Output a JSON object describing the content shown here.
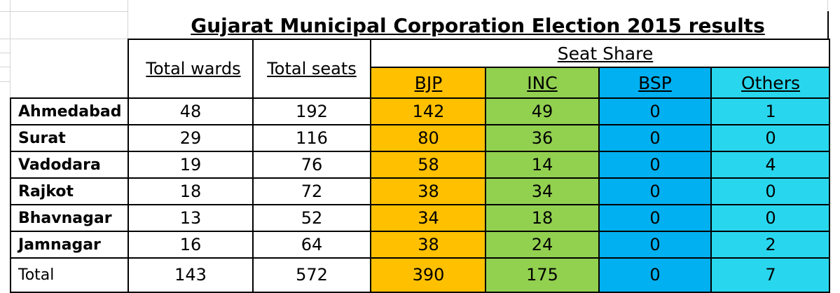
{
  "title": "Gujarat Municipal Corporation Election 2015 results",
  "headers": {
    "total_wards": "Total wards",
    "total_seats": "Total seats",
    "seat_share": "Seat Share"
  },
  "parties": [
    {
      "name": "BJP",
      "color": "#ffc000"
    },
    {
      "name": "INC",
      "color": "#92d050"
    },
    {
      "name": "BSP",
      "color": "#00b0f0"
    },
    {
      "name": "Others",
      "color": "#28d7ee"
    }
  ],
  "rows": [
    {
      "city": "Ahmedabad",
      "wards": "48",
      "seats": "192",
      "bjp": "142",
      "inc": "49",
      "bsp": "0",
      "others": "1"
    },
    {
      "city": "Surat",
      "wards": "29",
      "seats": "116",
      "bjp": "80",
      "inc": "36",
      "bsp": "0",
      "others": "0"
    },
    {
      "city": "Vadodara",
      "wards": "19",
      "seats": "76",
      "bjp": "58",
      "inc": "14",
      "bsp": "0",
      "others": "4"
    },
    {
      "city": "Rajkot",
      "wards": "18",
      "seats": "72",
      "bjp": "38",
      "inc": "34",
      "bsp": "0",
      "others": "0"
    },
    {
      "city": "Bhavnagar",
      "wards": "13",
      "seats": "52",
      "bjp": "34",
      "inc": "18",
      "bsp": "0",
      "others": "0"
    },
    {
      "city": "Jamnagar",
      "wards": "16",
      "seats": "64",
      "bjp": "38",
      "inc": "24",
      "bsp": "0",
      "others": "2"
    }
  ],
  "total": {
    "label": "Total",
    "wards": "143",
    "seats": "572",
    "bjp": "390",
    "inc": "175",
    "bsp": "0",
    "others": "7"
  }
}
